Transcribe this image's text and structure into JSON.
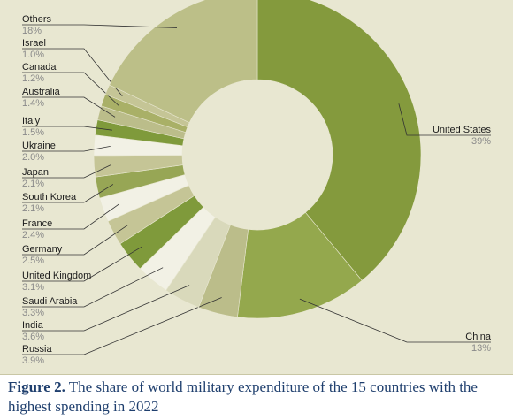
{
  "chart_data": {
    "type": "pie",
    "donut": true,
    "unit": "%",
    "slices": [
      {
        "label": "United States",
        "pct": "39%",
        "value": 39.0,
        "color": "#849a3d"
      },
      {
        "label": "China",
        "pct": "13%",
        "value": 13.0,
        "color": "#94a84d"
      },
      {
        "label": "Russia",
        "pct": "3.9%",
        "value": 3.9,
        "color": "#bbbd8a"
      },
      {
        "label": "India",
        "pct": "3.6%",
        "value": 3.6,
        "color": "#d9d9bb"
      },
      {
        "label": "Saudi Arabia",
        "pct": "3.3%",
        "value": 3.3,
        "color": "#f2f1e5"
      },
      {
        "label": "United Kingdom",
        "pct": "3.1%",
        "value": 3.1,
        "color": "#7f9a3b"
      },
      {
        "label": "Germany",
        "pct": "2.5%",
        "value": 2.5,
        "color": "#c5c596"
      },
      {
        "label": "France",
        "pct": "2.4%",
        "value": 2.4,
        "color": "#f2f1e5"
      },
      {
        "label": "South Korea",
        "pct": "2.1%",
        "value": 2.1,
        "color": "#97a655"
      },
      {
        "label": "Japan",
        "pct": "2.1%",
        "value": 2.1,
        "color": "#c5c596"
      },
      {
        "label": "Ukraine",
        "pct": "2.0%",
        "value": 2.0,
        "color": "#f2f1e5"
      },
      {
        "label": "Italy",
        "pct": "1.5%",
        "value": 1.5,
        "color": "#7f9a3b"
      },
      {
        "label": "Australia",
        "pct": "1.4%",
        "value": 1.4,
        "color": "#bbbd8a"
      },
      {
        "label": "Canada",
        "pct": "1.2%",
        "value": 1.2,
        "color": "#a9b067"
      },
      {
        "label": "Israel",
        "pct": "1.0%",
        "value": 1.0,
        "color": "#c5c596"
      },
      {
        "label": "Others",
        "pct": "18%",
        "value": 18.0,
        "color": "#bcbf88"
      }
    ]
  },
  "caption": {
    "figure_label": "Figure 2.",
    "text": " The share of world military expenditure of the 15 countries with the highest spending in 2022"
  }
}
